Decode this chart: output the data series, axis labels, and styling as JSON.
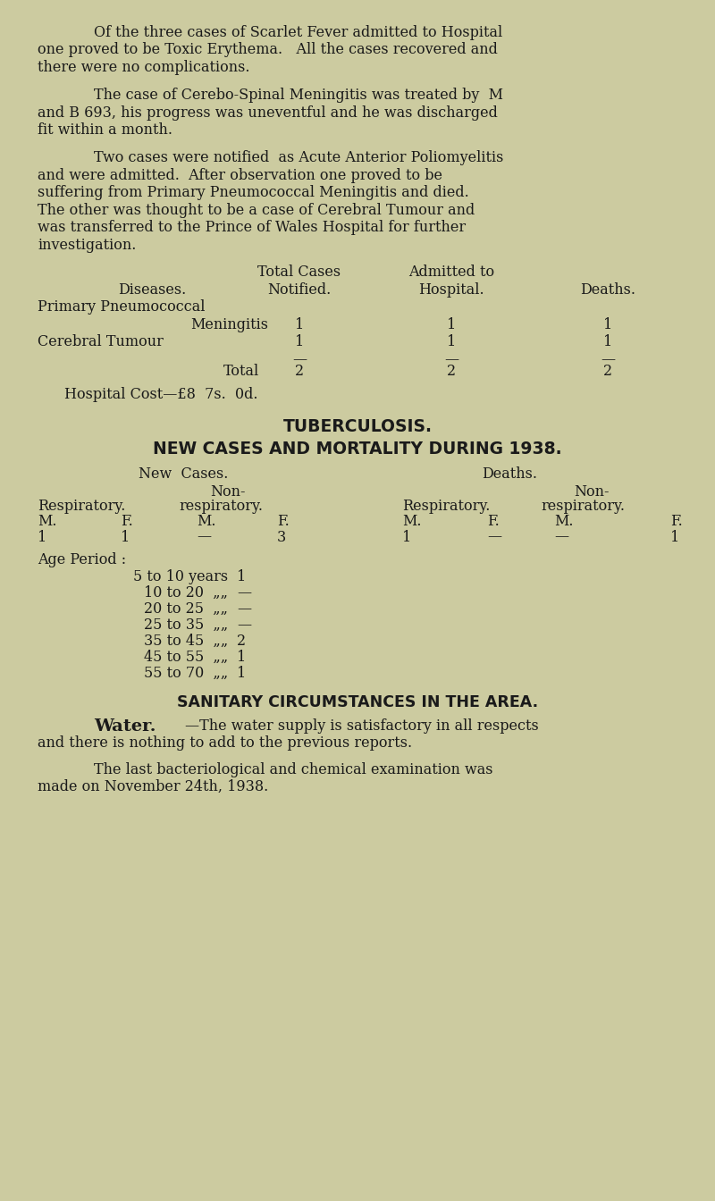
{
  "bg_color": "#cccba0",
  "text_color": "#1a1a1a",
  "page_width": 8.0,
  "page_height": 13.44,
  "para1": "Of the three cases of Scarlet Fever admitted to Hospital one proved to be Toxic Erythema.   All the cases recovered and there were no complications.",
  "para2": "The case of Cerebo-Spinal Meningitis was treated by  M and B 693, his progress was uneventful and he was discharged fit within a month.",
  "para3": "Two cases were notified  as Acute Anterior Poliomyelitis and were admitted.  After observation one proved to be suffering from Primary Pneumococcal Meningitis and died. The other was thought to be a case of Cerebral Tumour and was transferred to the Prince of Wales Hospital for further investigation.",
  "tuberculosis_heading": "TUBERCULOSIS.",
  "tuberculosis_subheading": "NEW CASES AND MORTALITY DURING 1938.",
  "sanitary_heading": "SANITARY CIRCUMSTANCES IN THE AREA.",
  "water_bold": "Water.",
  "water_rest": "—The water supply is satisfactory in all respects and there is nothing to add to the previous reports.",
  "last_para": "The last bacteriological and chemical examination was made on November 24th, 1938.",
  "hospital_cost": "Hospital Cost—£8  7s.  0d.",
  "age_rows": [
    [
      "5 to 10 years",
      "1"
    ],
    [
      "10 to 20  „„",
      "—"
    ],
    [
      "20 to 25  „„",
      "—"
    ],
    [
      "25 to 35  „„",
      "—"
    ],
    [
      "35 to 45  „„",
      "2"
    ],
    [
      "45 to 55  „„",
      "1"
    ],
    [
      "55 to 70  „„",
      "1"
    ]
  ]
}
